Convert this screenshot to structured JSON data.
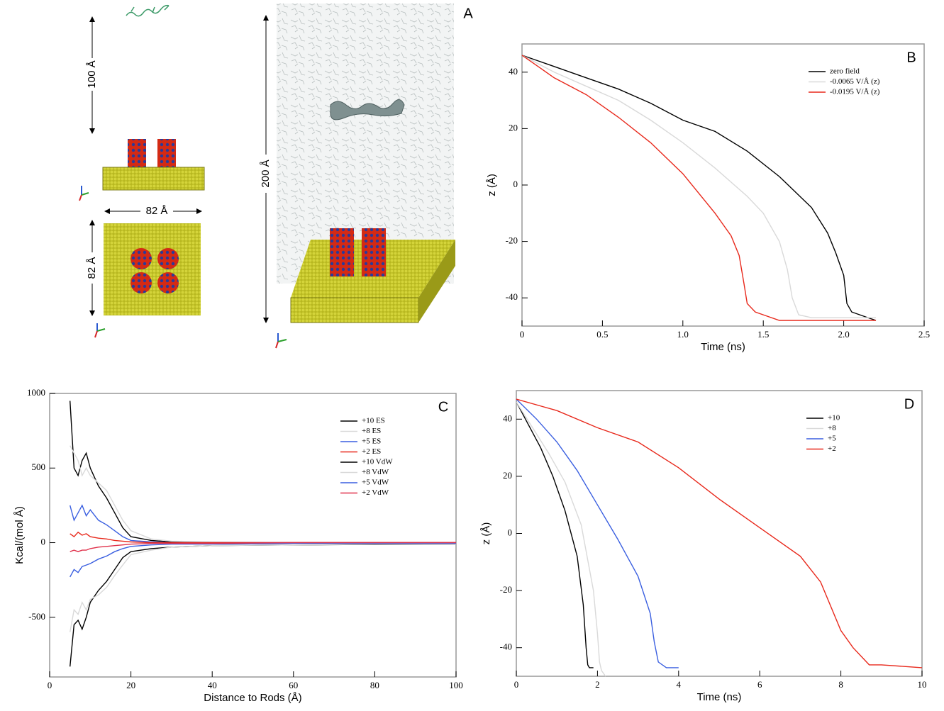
{
  "panel_a": {
    "label": "A",
    "dimension_labels": [
      "100 Å",
      "82 Å",
      "82 Å",
      "200 Å"
    ]
  },
  "chart_data": [
    {
      "type": "line",
      "panel_label": "B",
      "x_label": "Time (ns)",
      "y_label": "z (Å)",
      "xlim": [
        0,
        2.5
      ],
      "xticks": [
        0,
        0.5,
        {
          "value": 1,
          "label": "1.0"
        },
        1.5,
        {
          "value": 2,
          "label": "2.0"
        },
        2.5
      ],
      "ylim": [
        -50,
        50
      ],
      "yticks": [
        -40,
        -20,
        0,
        20,
        40
      ],
      "legend": "upper right",
      "series": [
        {
          "name": "zero field",
          "color": "#000000",
          "x": [
            0,
            0.1,
            0.2,
            0.4,
            0.6,
            0.8,
            1.0,
            1.2,
            1.4,
            1.6,
            1.8,
            1.9,
            1.95,
            2.0,
            2.02,
            2.05,
            2.1,
            2.15,
            2.2
          ],
          "values": [
            46,
            44,
            42,
            38,
            34,
            29,
            23,
            19,
            12,
            3,
            -8,
            -17,
            -24,
            -32,
            -42,
            -45,
            -46,
            -47,
            -48
          ]
        },
        {
          "name": "-0.0065 V/Å (z)",
          "color": "#d9d9d9",
          "x": [
            0,
            0.1,
            0.2,
            0.4,
            0.6,
            0.8,
            1.0,
            1.2,
            1.4,
            1.5,
            1.6,
            1.65,
            1.68,
            1.72,
            1.8,
            2.0,
            2.2
          ],
          "values": [
            46,
            43,
            40,
            35,
            30,
            23,
            15,
            6,
            -4,
            -10,
            -20,
            -30,
            -40,
            -46,
            -47,
            -47,
            -47
          ]
        },
        {
          "name": "-0.0195 V/Å (z)",
          "color": "#e8291c",
          "x": [
            0,
            0.1,
            0.2,
            0.4,
            0.6,
            0.8,
            1.0,
            1.1,
            1.2,
            1.3,
            1.35,
            1.38,
            1.4,
            1.45,
            1.5,
            1.6,
            1.8,
            2.0,
            2.2
          ],
          "values": [
            46,
            42,
            38,
            32,
            24,
            15,
            4,
            -3,
            -10,
            -18,
            -25,
            -35,
            -42,
            -45,
            -46,
            -48,
            -48,
            -48,
            -48
          ]
        }
      ]
    },
    {
      "type": "line",
      "panel_label": "C",
      "x_label": "Distance to Rods (Å)",
      "y_label": "Kcal/(mol Å)",
      "xlim": [
        0,
        100
      ],
      "xticks": [
        0,
        20,
        40,
        60,
        80,
        100
      ],
      "ylim": [
        -900,
        1000
      ],
      "yticks": [
        -500,
        0,
        500,
        1000
      ],
      "legend": "upper right",
      "x": [
        5,
        6,
        7,
        8,
        9,
        10,
        12,
        14,
        16,
        18,
        20,
        25,
        30,
        40,
        60,
        80,
        100
      ],
      "series": [
        {
          "name": "+10 ES",
          "color": "#000000",
          "values": [
            950,
            500,
            450,
            550,
            600,
            500,
            380,
            300,
            200,
            100,
            40,
            15,
            5,
            0,
            0,
            0,
            0
          ]
        },
        {
          "name": "+8 ES",
          "color": "#d9d9d9",
          "values": [
            650,
            600,
            550,
            450,
            500,
            450,
            400,
            350,
            250,
            150,
            80,
            25,
            10,
            5,
            0,
            0,
            0
          ]
        },
        {
          "name": "+5 ES",
          "color": "#3a5fe0",
          "values": [
            250,
            150,
            200,
            250,
            180,
            220,
            150,
            120,
            80,
            40,
            15,
            5,
            0,
            0,
            0,
            0,
            0
          ]
        },
        {
          "name": "+2 ES",
          "color": "#e8291c",
          "values": [
            60,
            40,
            70,
            50,
            60,
            40,
            30,
            25,
            15,
            10,
            5,
            0,
            0,
            0,
            0,
            0,
            0
          ]
        },
        {
          "name": "+10 VdW",
          "color": "#000000",
          "values": [
            -830,
            -550,
            -520,
            -580,
            -500,
            -400,
            -320,
            -260,
            -180,
            -100,
            -60,
            -40,
            -30,
            -20,
            -15,
            -12,
            -10
          ]
        },
        {
          "name": "+8 VdW",
          "color": "#d9d9d9",
          "values": [
            -600,
            -450,
            -480,
            -400,
            -450,
            -380,
            -350,
            -300,
            -220,
            -150,
            -80,
            -50,
            -30,
            -20,
            -15,
            -10,
            -10
          ]
        },
        {
          "name": "+5 VdW",
          "color": "#3a5fe0",
          "values": [
            -230,
            -180,
            -200,
            -160,
            -150,
            -140,
            -110,
            -90,
            -60,
            -40,
            -25,
            -15,
            -10,
            -10,
            -5,
            -5,
            -5
          ]
        },
        {
          "name": "+2 VdW",
          "color": "#e0304a",
          "values": [
            -60,
            -50,
            -60,
            -50,
            -50,
            -40,
            -30,
            -25,
            -20,
            -15,
            -10,
            -5,
            -5,
            -5,
            0,
            0,
            0
          ]
        }
      ]
    },
    {
      "type": "line",
      "panel_label": "D",
      "x_label": "Time (ns)",
      "y_label": "z (Å)",
      "xlim": [
        0,
        10
      ],
      "xticks": [
        0,
        2,
        4,
        6,
        8,
        10
      ],
      "ylim": [
        -50,
        50
      ],
      "yticks": [
        -40,
        -20,
        0,
        20,
        40
      ],
      "legend": "upper right",
      "series": [
        {
          "name": "+10",
          "color": "#000000",
          "x": [
            0,
            0.3,
            0.6,
            0.9,
            1.2,
            1.5,
            1.65,
            1.72,
            1.76,
            1.8,
            1.9
          ],
          "values": [
            46,
            38,
            30,
            20,
            8,
            -8,
            -25,
            -40,
            -46,
            -47,
            -47
          ]
        },
        {
          "name": "+8",
          "color": "#d9d9d9",
          "x": [
            0,
            0.4,
            0.8,
            1.2,
            1.6,
            1.9,
            2.0,
            2.05,
            2.1,
            2.2
          ],
          "values": [
            46,
            37,
            28,
            18,
            3,
            -20,
            -35,
            -45,
            -48,
            -50
          ]
        },
        {
          "name": "+5",
          "color": "#3a5fe0",
          "x": [
            0,
            0.5,
            1,
            1.5,
            2,
            2.5,
            3,
            3.3,
            3.4,
            3.5,
            3.7,
            4.0
          ],
          "values": [
            47,
            40,
            32,
            22,
            10,
            -2,
            -15,
            -28,
            -38,
            -45,
            -47,
            -47
          ]
        },
        {
          "name": "+2",
          "color": "#e8291c",
          "x": [
            0,
            1,
            2,
            3,
            4,
            5,
            6,
            7,
            7.5,
            8,
            8.3,
            8.7,
            9,
            10
          ],
          "values": [
            47,
            43,
            37,
            32,
            23,
            12,
            2,
            -8,
            -17,
            -34,
            -40,
            -46,
            -46,
            -47
          ]
        }
      ]
    }
  ]
}
